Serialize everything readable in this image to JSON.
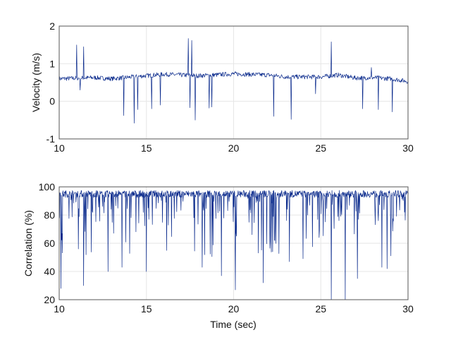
{
  "chart_data": [
    {
      "type": "line",
      "title": "",
      "xlabel": "",
      "ylabel": "Velocity (m/s)",
      "xlim": [
        10,
        30
      ],
      "ylim": [
        -1,
        2
      ],
      "xticks": [
        "10",
        "15",
        "20",
        "25",
        "30"
      ],
      "yticks": [
        "-1",
        "0",
        "1",
        "2"
      ],
      "grid": true,
      "line_color": "#0a2a8c",
      "baseline": {
        "x": [
          10,
          12,
          13,
          14.5,
          16,
          18,
          20,
          22,
          23,
          25,
          26,
          27,
          28,
          29,
          30
        ],
        "y": [
          0.6,
          0.63,
          0.6,
          0.66,
          0.72,
          0.68,
          0.73,
          0.7,
          0.65,
          0.65,
          0.7,
          0.62,
          0.63,
          0.6,
          0.53
        ]
      },
      "spikes": {
        "x": [
          11.0,
          11.2,
          11.4,
          13.7,
          14.3,
          14.5,
          15.3,
          15.8,
          17.4,
          17.5,
          17.6,
          17.8,
          18.6,
          18.75,
          22.3,
          23.3,
          24.7,
          24.7,
          25.6,
          27.4,
          27.9,
          28.3,
          29.1
        ],
        "y": [
          1.5,
          0.3,
          1.45,
          -0.38,
          -0.58,
          -0.22,
          -0.2,
          -0.1,
          1.67,
          -0.17,
          1.62,
          -0.5,
          -0.18,
          -0.15,
          -0.4,
          -0.48,
          1.1,
          0.2,
          1.58,
          -0.2,
          0.9,
          -0.22,
          -0.28
        ]
      }
    },
    {
      "type": "line",
      "title": "",
      "xlabel": "Time (sec)",
      "ylabel": "Correlation (%)",
      "xlim": [
        10,
        30
      ],
      "ylim": [
        20,
        100
      ],
      "xticks": [
        "10",
        "15",
        "20",
        "25",
        "30"
      ],
      "yticks": [
        "20",
        "40",
        "60",
        "80",
        "100"
      ],
      "grid": true,
      "line_color": "#0a2a8c",
      "baseline_value": 95,
      "major_dips": {
        "x": [
          10.1,
          11.1,
          11.4,
          12.8,
          13.6,
          15.0,
          18.2,
          19.3,
          20.1,
          21.7,
          23.2,
          25.6,
          26.4,
          27.1,
          28.5,
          28.8
        ],
        "y": [
          28,
          56,
          30,
          40,
          43,
          40,
          43,
          37,
          27,
          32,
          47,
          20,
          20,
          35,
          43,
          42
        ]
      }
    }
  ]
}
